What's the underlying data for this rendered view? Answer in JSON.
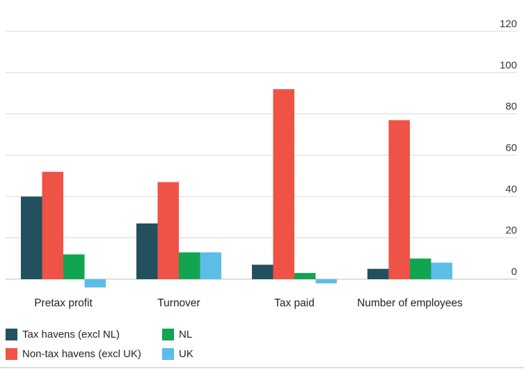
{
  "chart_data": {
    "type": "bar",
    "categories": [
      "Pretax profit",
      "Turnover",
      "Tax paid",
      "Number of employees"
    ],
    "series": [
      {
        "name": "Tax havens (excl NL)",
        "color": "#22505f",
        "values": [
          40,
          27,
          7,
          5
        ]
      },
      {
        "name": "Non-tax havens (excl UK)",
        "color": "#ef5345",
        "values": [
          52,
          47,
          92,
          77
        ]
      },
      {
        "name": "NL",
        "color": "#11a551",
        "values": [
          12,
          13,
          3,
          10
        ]
      },
      {
        "name": "UK",
        "color": "#5cbde8",
        "values": [
          -4,
          13,
          -2,
          8
        ]
      }
    ],
    "yticks": [
      0,
      20,
      40,
      60,
      80,
      100,
      120
    ],
    "ylim": [
      -6,
      122
    ],
    "ylabel": "",
    "xlabel": "",
    "title": "",
    "grid": true,
    "y_axis_side": "right",
    "legend_position": "bottom-left"
  },
  "legend": {
    "tax_havens": "Tax havens (excl NL)",
    "nl": "NL",
    "non_tax_havens": "Non-tax havens (excl UK)",
    "uk": "UK"
  }
}
